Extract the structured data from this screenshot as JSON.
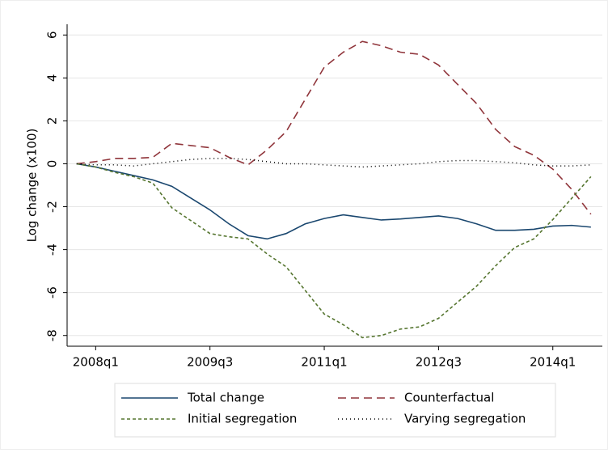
{
  "chart_data": {
    "type": "line",
    "ylabel": "Log change (x100)",
    "x": [
      191,
      192,
      193,
      194,
      195,
      196,
      197,
      198,
      199,
      200,
      201,
      202,
      203,
      204,
      205,
      206,
      207,
      208,
      209,
      210,
      211,
      212,
      213,
      214,
      215,
      216,
      217,
      218
    ],
    "xlim": [
      190.5,
      218.6
    ],
    "xticks": [
      {
        "value": 192,
        "label": "2008q1"
      },
      {
        "value": 198,
        "label": "2009q3"
      },
      {
        "value": 204,
        "label": "2011q1"
      },
      {
        "value": 210,
        "label": "2012q3"
      },
      {
        "value": 216,
        "label": "2014q1"
      }
    ],
    "ylim": [
      -8.5,
      6.5
    ],
    "yticks": [
      -8,
      -6,
      -4,
      -2,
      0,
      2,
      4,
      6
    ],
    "grid": true,
    "legend": "bottom",
    "series": [
      {
        "name": "Total change",
        "color": "#1a476f",
        "dash": "solid",
        "values": [
          0,
          -0.15,
          -0.35,
          -0.55,
          -0.75,
          -1.05,
          -1.6,
          -2.15,
          -2.8,
          -3.35,
          -3.5,
          -3.25,
          -2.8,
          -2.55,
          -2.38,
          -2.5,
          -2.62,
          -2.57,
          -2.5,
          -2.43,
          -2.55,
          -2.8,
          -3.1,
          -3.1,
          -3.05,
          -2.9,
          -2.87,
          -2.95
        ]
      },
      {
        "name": "Counterfactual",
        "color": "#90353b",
        "dash": "long",
        "values": [
          0,
          0.1,
          0.25,
          0.25,
          0.3,
          0.95,
          0.85,
          0.75,
          0.3,
          -0.05,
          0.65,
          1.5,
          3.0,
          4.5,
          5.2,
          5.7,
          5.5,
          5.2,
          5.1,
          4.6,
          3.7,
          2.8,
          1.6,
          0.8,
          0.4,
          -0.25,
          -1.2,
          -2.35
        ]
      },
      {
        "name": "Initial segregation",
        "color": "#55752f",
        "dash": "short",
        "values": [
          0,
          -0.15,
          -0.4,
          -0.6,
          -0.9,
          -2.05,
          -2.65,
          -3.25,
          -3.4,
          -3.5,
          -4.2,
          -4.8,
          -5.9,
          -7.0,
          -7.5,
          -8.1,
          -8.0,
          -7.7,
          -7.6,
          -7.2,
          -6.45,
          -5.7,
          -4.75,
          -3.9,
          -3.5,
          -2.6,
          -1.6,
          -0.6
        ]
      },
      {
        "name": "Varying segregation",
        "color": "#000000",
        "dash": "dot",
        "values": [
          0,
          -0.05,
          -0.05,
          -0.1,
          0,
          0.1,
          0.2,
          0.25,
          0.25,
          0.2,
          0.1,
          0,
          0,
          -0.05,
          -0.1,
          -0.15,
          -0.1,
          -0.05,
          0,
          0.1,
          0.15,
          0.15,
          0.1,
          0.05,
          -0.05,
          -0.1,
          -0.1,
          -0.05
        ]
      }
    ]
  }
}
